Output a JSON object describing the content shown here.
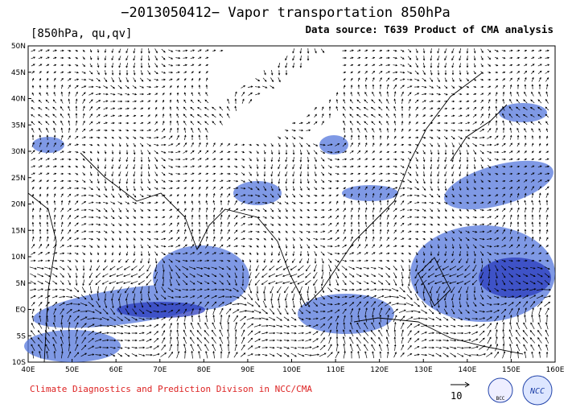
{
  "header": {
    "title": "−2013050412− Vapor transportation 850hPa",
    "variables": "[850hPa, qu,qv]",
    "source": "Data source: T639 Product of CMA analysis"
  },
  "map": {
    "lat_labels": [
      "50N",
      "45N",
      "40N",
      "35N",
      "30N",
      "25N",
      "20N",
      "15N",
      "10N",
      "5N",
      "EQ",
      "5S",
      "10S"
    ],
    "lon_labels": [
      "40E",
      "50E",
      "60E",
      "70E",
      "80E",
      "90E",
      "100E",
      "110E",
      "120E",
      "130E",
      "140E",
      "150E",
      "160E"
    ]
  },
  "footer": {
    "credit": "Climate Diagnostics and Prediction Divison in NCC/CMA",
    "reference_vector": "10",
    "logo_left": "BCC",
    "logo_right": "NCC"
  }
}
